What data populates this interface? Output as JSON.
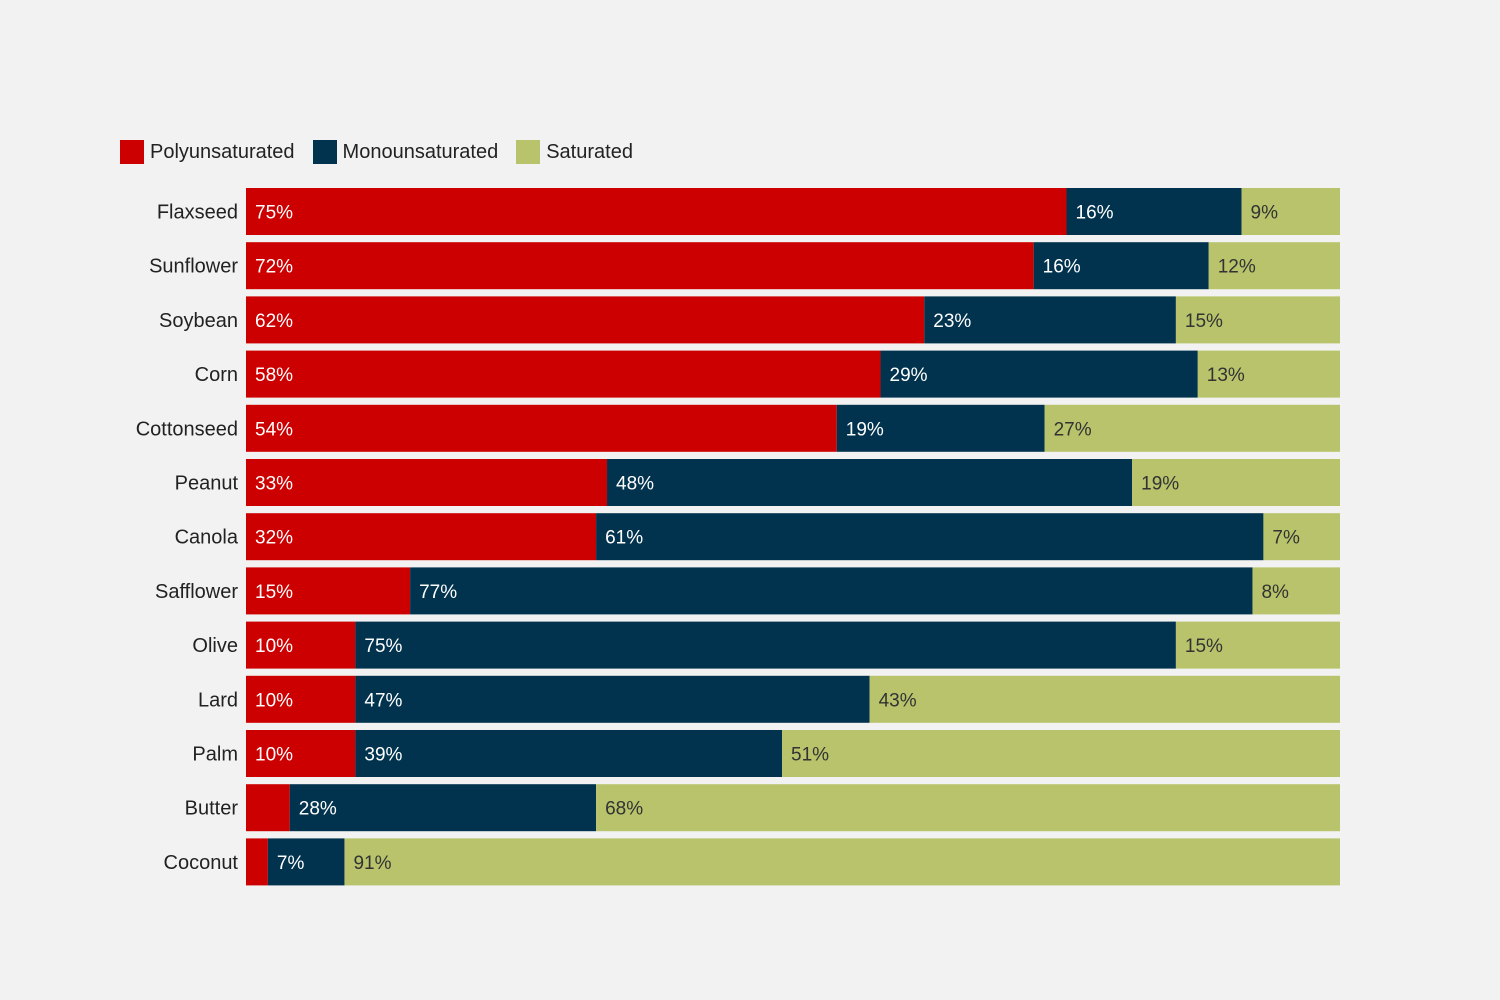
{
  "chart_data": {
    "type": "bar",
    "orientation": "horizontal",
    "stacked": true,
    "title": "",
    "xlabel": "",
    "ylabel": "",
    "xlim": [
      0,
      100
    ],
    "grid": false,
    "legend_position": "top-left",
    "categories": [
      "Flaxseed",
      "Sunflower",
      "Soybean",
      "Corn",
      "Cottonseed",
      "Peanut",
      "Canola",
      "Safflower",
      "Olive",
      "Lard",
      "Palm",
      "Butter",
      "Coconut"
    ],
    "series": [
      {
        "name": "Polyunsaturated",
        "color": "#cc0000",
        "label_color": "#ffffff",
        "values": [
          75,
          72,
          62,
          58,
          54,
          33,
          32,
          15,
          10,
          10,
          10,
          4,
          2
        ],
        "labels": [
          "75%",
          "72%",
          "62%",
          "58%",
          "54%",
          "33%",
          "32%",
          "15%",
          "10%",
          "10%",
          "10%",
          "",
          ""
        ]
      },
      {
        "name": "Monounsaturated",
        "color": "#02334e",
        "label_color": "#ffffff",
        "values": [
          16,
          16,
          23,
          29,
          19,
          48,
          61,
          77,
          75,
          47,
          39,
          28,
          7
        ],
        "labels": [
          "16%",
          "16%",
          "23%",
          "29%",
          "19%",
          "48%",
          "61%",
          "77%",
          "75%",
          "47%",
          "39%",
          "28%",
          "7%"
        ]
      },
      {
        "name": "Saturated",
        "color": "#b8c36b",
        "label_color": "#333333",
        "values": [
          9,
          12,
          15,
          13,
          27,
          19,
          7,
          8,
          15,
          43,
          51,
          68,
          91
        ],
        "labels": [
          "9%",
          "12%",
          "15%",
          "13%",
          "27%",
          "19%",
          "7%",
          "8%",
          "15%",
          "43%",
          "51%",
          "68%",
          "91%"
        ]
      }
    ]
  }
}
